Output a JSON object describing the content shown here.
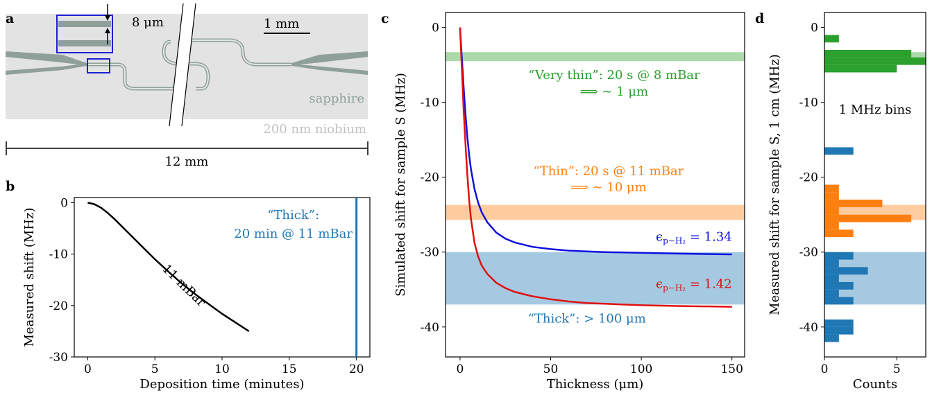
{
  "panel_letters": {
    "a": "a",
    "b": "b",
    "c": "c",
    "d": "d"
  },
  "schematic": {
    "gap_label": "8 μm",
    "scale_label": "1 mm",
    "substrate_label": "sapphire",
    "film_label": "200 nm niobium",
    "width_label": "12 mm",
    "colors": {
      "substrate": "#e3e3e3",
      "niobium": "#8fa09a",
      "highlight": "#1f1fd6"
    }
  },
  "chart_data": [
    {
      "panel": "b",
      "type": "line",
      "xlabel": "Deposition time (minutes)",
      "ylabel": "Measured shift (MHz)",
      "xlim": [
        -1,
        21
      ],
      "ylim": [
        -30,
        1
      ],
      "xticks": [
        0,
        5,
        10,
        15,
        20
      ],
      "yticks": [
        0,
        -10,
        -20,
        -30
      ],
      "series": [
        {
          "label": "11 mBar",
          "color": "#000000",
          "x": [
            0,
            0.5,
            1,
            1.5,
            2,
            3,
            4,
            5,
            6,
            7,
            8,
            9,
            10,
            11,
            12
          ],
          "y": [
            0,
            -0.3,
            -1.0,
            -2.0,
            -3.2,
            -5.8,
            -8.4,
            -11.0,
            -13.4,
            -15.7,
            -17.8,
            -19.7,
            -21.6,
            -23.3,
            -25.0
          ]
        }
      ],
      "vline": {
        "x": 20,
        "color": "#1f77b4"
      },
      "annotation": {
        "line1": "“Thick”:",
        "line2": "20 min @ 11 mBar",
        "color": "#1f77b4"
      }
    },
    {
      "panel": "c",
      "type": "line",
      "xlabel": "Thickness (μm)",
      "ylabel": "Simulated shift for sample S (MHz)",
      "xlim": [
        -8,
        157
      ],
      "ylim": [
        -44,
        2
      ],
      "xticks": [
        0,
        50,
        100,
        150
      ],
      "yticks": [
        0,
        -10,
        -20,
        -30,
        -40
      ],
      "bands": [
        {
          "y0": -3.3,
          "y1": -4.5,
          "color": "#2ca02c",
          "opacity": 0.4
        },
        {
          "y0": -23.7,
          "y1": -25.7,
          "color": "#ff7f0e",
          "opacity": 0.4
        },
        {
          "y0": -30.0,
          "y1": -37.0,
          "color": "#1f77b4",
          "opacity": 0.4
        }
      ],
      "series": [
        {
          "label_prefix": "ϵ",
          "label_sub": "p−H₂",
          "label_value": "= 1.34",
          "color": "#1010e0",
          "x": [
            0,
            1,
            2,
            3,
            4,
            5,
            6,
            8,
            10,
            12,
            15,
            20,
            25,
            30,
            40,
            50,
            60,
            70,
            80,
            100,
            120,
            150
          ],
          "y": [
            0,
            -4.0,
            -8.0,
            -11.5,
            -14.5,
            -17.0,
            -18.9,
            -21.6,
            -23.4,
            -24.7,
            -26.0,
            -27.4,
            -28.2,
            -28.7,
            -29.3,
            -29.6,
            -29.8,
            -29.9,
            -30.0,
            -30.1,
            -30.2,
            -30.3
          ]
        },
        {
          "label_prefix": "ϵ",
          "label_sub": "p−H₂",
          "label_value": "= 1.42",
          "color": "#e01010",
          "x": [
            0,
            1,
            2,
            3,
            4,
            5,
            6,
            8,
            10,
            12,
            15,
            20,
            25,
            30,
            40,
            50,
            60,
            70,
            80,
            100,
            120,
            150
          ],
          "y": [
            0,
            -5.5,
            -11.0,
            -15.5,
            -19.5,
            -23.0,
            -25.5,
            -28.8,
            -30.6,
            -31.8,
            -32.9,
            -34.1,
            -34.8,
            -35.3,
            -35.9,
            -36.3,
            -36.6,
            -36.8,
            -36.9,
            -37.1,
            -37.2,
            -37.3
          ]
        }
      ],
      "annotations": [
        {
          "line1": "“Very thin”: 20 s @ 8 mBar",
          "line2": "⟹ ∼ 1 μm",
          "color": "#2ca02c"
        },
        {
          "line1": "“Thin”: 20 s @ 11 mBar",
          "line2": "⟹ ∼ 10 μm",
          "color": "#ff7f0e"
        },
        {
          "line1": "“Thick”: > 100 μm",
          "color": "#1f77b4"
        }
      ]
    },
    {
      "panel": "d",
      "type": "bar",
      "xlabel": "Counts",
      "ylabel": "Measured shift for sample S, 1 cm (MHz)",
      "xlim": [
        0,
        7
      ],
      "ylim": [
        -44,
        2
      ],
      "xticks": [
        0,
        5
      ],
      "yticks": [
        0,
        -10,
        -20,
        -30,
        -40
      ],
      "annotation": "1 MHz bins",
      "bands": [
        {
          "y0": -3.3,
          "y1": -4.5,
          "color": "#2ca02c",
          "opacity": 0.4
        },
        {
          "y0": -23.7,
          "y1": -25.7,
          "color": "#ff7f0e",
          "opacity": 0.4
        },
        {
          "y0": -30.0,
          "y1": -37.0,
          "color": "#1f77b4",
          "opacity": 0.4
        }
      ],
      "bars": [
        {
          "bin": [
            -1,
            -2
          ],
          "count": 1,
          "color": "#2ca02c"
        },
        {
          "bin": [
            -2,
            -3
          ],
          "count": 0,
          "color": "#2ca02c"
        },
        {
          "bin": [
            -3,
            -4
          ],
          "count": 6,
          "color": "#2ca02c"
        },
        {
          "bin": [
            -4,
            -5
          ],
          "count": 7,
          "color": "#2ca02c"
        },
        {
          "bin": [
            -5,
            -6
          ],
          "count": 5,
          "color": "#2ca02c"
        },
        {
          "bin": [
            -16,
            -17
          ],
          "count": 2,
          "color": "#1f77b4"
        },
        {
          "bin": [
            -21,
            -22
          ],
          "count": 1,
          "color": "#ff7f0e"
        },
        {
          "bin": [
            -22,
            -23
          ],
          "count": 1,
          "color": "#ff7f0e"
        },
        {
          "bin": [
            -23,
            -24
          ],
          "count": 4,
          "color": "#ff7f0e"
        },
        {
          "bin": [
            -24,
            -25
          ],
          "count": 1,
          "color": "#ff7f0e"
        },
        {
          "bin": [
            -25,
            -26
          ],
          "count": 6,
          "color": "#ff7f0e"
        },
        {
          "bin": [
            -26,
            -27
          ],
          "count": 1,
          "color": "#ff7f0e"
        },
        {
          "bin": [
            -27,
            -28
          ],
          "count": 2,
          "color": "#ff7f0e"
        },
        {
          "bin": [
            -30,
            -31
          ],
          "count": 2,
          "color": "#1f77b4"
        },
        {
          "bin": [
            -31,
            -32
          ],
          "count": 1,
          "color": "#1f77b4"
        },
        {
          "bin": [
            -32,
            -33
          ],
          "count": 3,
          "color": "#1f77b4"
        },
        {
          "bin": [
            -33,
            -34
          ],
          "count": 1,
          "color": "#1f77b4"
        },
        {
          "bin": [
            -34,
            -35
          ],
          "count": 2,
          "color": "#1f77b4"
        },
        {
          "bin": [
            -35,
            -36
          ],
          "count": 1,
          "color": "#1f77b4"
        },
        {
          "bin": [
            -36,
            -37
          ],
          "count": 2,
          "color": "#1f77b4"
        },
        {
          "bin": [
            -39,
            -40
          ],
          "count": 2,
          "color": "#1f77b4"
        },
        {
          "bin": [
            -40,
            -41
          ],
          "count": 2,
          "color": "#1f77b4"
        },
        {
          "bin": [
            -41,
            -42
          ],
          "count": 1,
          "color": "#1f77b4"
        }
      ]
    }
  ]
}
